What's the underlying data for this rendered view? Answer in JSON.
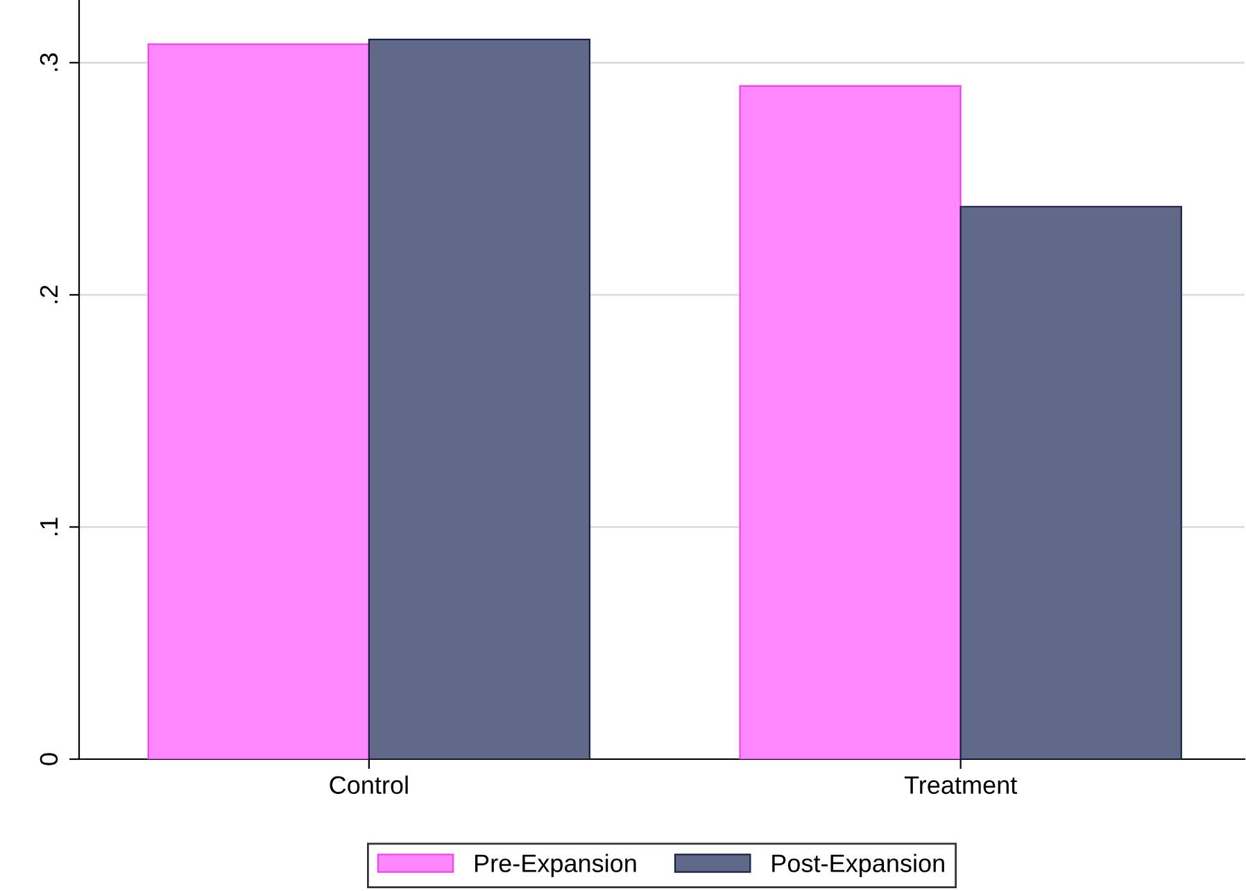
{
  "chart_data": {
    "type": "bar",
    "categories": [
      "Control",
      "Treatment"
    ],
    "series": [
      {
        "name": "Pre-Expansion",
        "color": "#ff88ff",
        "values": [
          0.308,
          0.29
        ]
      },
      {
        "name": "Post-Expansion",
        "color": "#606a88",
        "values": [
          0.31,
          0.238
        ]
      }
    ],
    "ylim": [
      0,
      0.327
    ],
    "yticks": [
      0,
      {
        "value": 0.1,
        "label": ".1"
      },
      {
        "value": 0.2,
        "label": ".2"
      },
      {
        "value": 0.3,
        "label": ".3"
      }
    ],
    "grid": "y",
    "legend": "bottom"
  }
}
